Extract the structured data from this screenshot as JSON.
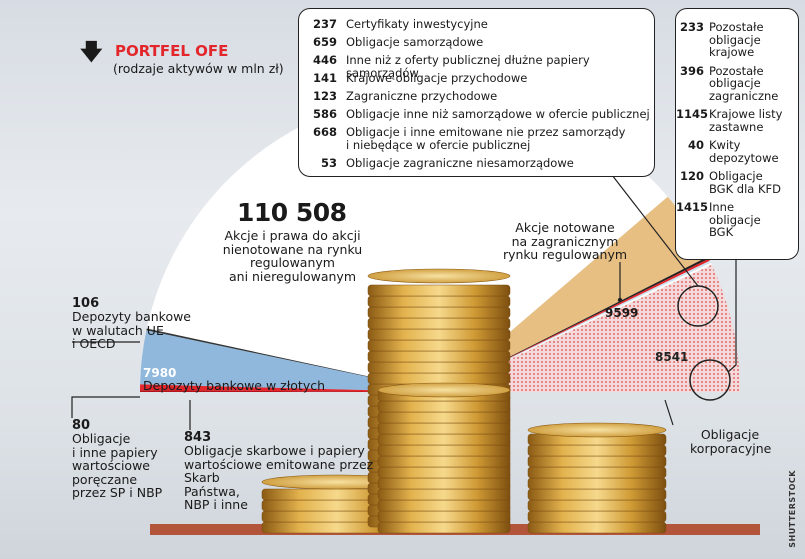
{
  "header": {
    "arrow": "🡇",
    "title": "PORTFEL OFE",
    "subtitle": "(rodzaje aktywów w mln zł)"
  },
  "credit": "SHUTTERSTOCK",
  "colors": {
    "accent_red": "#e3262b",
    "blue": "#8fb8dc",
    "tan": "#e8bf82",
    "dots": "#d94a4a"
  },
  "chart_data": {
    "type": "pie",
    "unit": "mln zł",
    "slices": [
      {
        "label": "Akcje i prawa do akcji nienotowane na rynku regulowanym ani nieregulowanym",
        "value": 110508
      },
      {
        "label": "Akcje notowane na zagranicznym rynku regulowanym",
        "value": 9599
      },
      {
        "label": "Obligacje korporacyjne",
        "value": 8541
      },
      {
        "label": "Depozyty bankowe w złotych",
        "value": 7980
      },
      {
        "label": "Obligacje skarbowe i papiery wartościowe emitowane przez Skarb Państwa, NBP i inne",
        "value": 843
      },
      {
        "label": "Depozyty bankowe w walutach UE i OECD",
        "value": 106
      },
      {
        "label": "Obligacje i inne papiery wartościowe poręczane przez SP i NBP",
        "value": 80
      }
    ],
    "labels": {
      "big_value": "110 508",
      "big_desc": [
        "Akcje i prawa do akcji",
        "nienotowane na rynku",
        "regulowanym",
        "ani nieregulowanym"
      ],
      "akcje_zagr_desc": [
        "Akcje notowane",
        "na zagranicznym",
        "rynku regulowanym"
      ],
      "akcje_zagr_value": "9599",
      "korp_value": "8541",
      "korp_desc": [
        "Obligacje",
        "korporacyjne"
      ],
      "dep_pln_value": "7980",
      "dep_pln_desc": "Depozyty bankowe w złotych",
      "dep_ue_value": "106",
      "dep_ue_desc": [
        "Depozyty bankowe",
        "w walutach UE",
        "i OECD"
      ],
      "sp_value": "80",
      "sp_desc": [
        "Obligacje",
        "i inne papiery",
        "wartościowe",
        "poręczane",
        "przez SP i NBP"
      ],
      "skarb_value": "843",
      "skarb_desc": [
        "Obligacje skarbowe i papiery",
        "wartościowe emitowane przez",
        "Skarb",
        "Państwa,",
        "NBP i inne"
      ]
    },
    "breakdown_left": [
      {
        "value": "237",
        "label": [
          "Certyfikaty inwestycyjne"
        ]
      },
      {
        "value": "659",
        "label": [
          "Obligacje samorządowe"
        ]
      },
      {
        "value": "446",
        "label": [
          "Inne niż z oferty publicznej dłużne papiery samorządów"
        ]
      },
      {
        "value": "141",
        "label": [
          "Krajowe obligacje przychodowe"
        ]
      },
      {
        "value": "123",
        "label": [
          "Zagraniczne  przychodowe"
        ]
      },
      {
        "value": "586",
        "label": [
          "Obligacje inne niż samorządowe w ofercie publicznej"
        ]
      },
      {
        "value": "668",
        "label": [
          "Obligacje i inne emitowane nie przez samorządy",
          "i niebędące w ofercie publicznej"
        ]
      },
      {
        "value": "53",
        "label": [
          "Obligacje zagraniczne niesamorządowe"
        ]
      }
    ],
    "breakdown_right": [
      {
        "value": "233",
        "label": [
          "Pozostałe",
          "obligacje",
          "krajowe"
        ]
      },
      {
        "value": "396",
        "label": [
          "Pozostałe",
          "obligacje",
          "zagraniczne"
        ]
      },
      {
        "value": "1145",
        "label": [
          "Krajowe listy",
          "zastawne"
        ]
      },
      {
        "value": "40",
        "label": [
          "Kwity",
          "depozytowe"
        ]
      },
      {
        "value": "120",
        "label": [
          "Obligacje",
          "BGK dla KFD"
        ]
      },
      {
        "value": "1415",
        "label": [
          "Inne",
          "obligacje",
          "BGK"
        ]
      }
    ]
  }
}
